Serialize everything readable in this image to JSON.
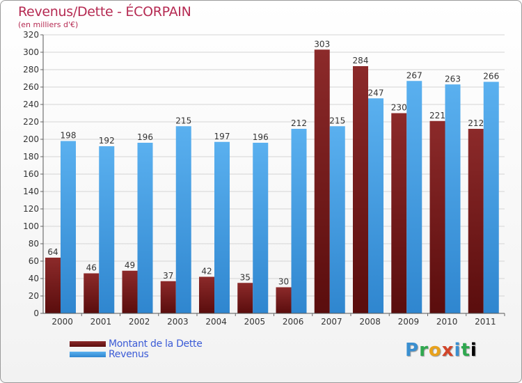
{
  "header": {
    "title": "Revenus/Dette - ÉCORPAIN",
    "subtitle": "(en milliers d'€)"
  },
  "logo": {
    "text": "Proxiti"
  },
  "chart_data": {
    "type": "bar",
    "categories": [
      "2000",
      "2001",
      "2002",
      "2003",
      "2004",
      "2005",
      "2006",
      "2007",
      "2008",
      "2009",
      "2010",
      "2011"
    ],
    "series": [
      {
        "name": "Montant de la Dette",
        "values": [
          64,
          46,
          49,
          37,
          42,
          35,
          30,
          303,
          284,
          230,
          221,
          212
        ],
        "color": "#7a1c1c"
      },
      {
        "name": "Revenus",
        "values": [
          198,
          192,
          196,
          215,
          197,
          196,
          212,
          215,
          247,
          267,
          263,
          266
        ],
        "color": "#4aa3e6"
      }
    ],
    "ylim": [
      0,
      320
    ],
    "yticks": [
      "0",
      "20",
      "40",
      "60",
      "80",
      "100",
      "120",
      "140",
      "160",
      "180",
      "200",
      "220",
      "240",
      "260",
      "280",
      "300",
      "320"
    ],
    "grid": true,
    "legend": "bottom-left"
  }
}
